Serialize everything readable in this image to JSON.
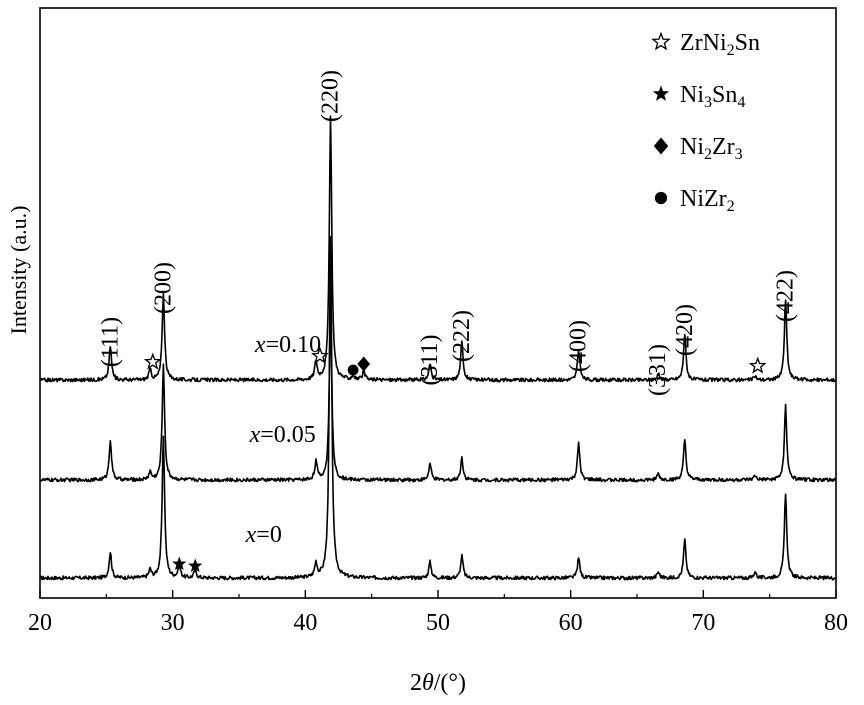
{
  "chart_data": {
    "type": "line",
    "title": "",
    "xlabel": "2θ/(°)",
    "xlabel_parts": {
      "prefix": "2",
      "theta": "θ",
      "suffix": "/(°)"
    },
    "ylabel": "Intensity (a.u.)",
    "xlim": [
      20,
      80
    ],
    "x_ticks": [
      20,
      30,
      40,
      50,
      60,
      70,
      80
    ],
    "y_ticks_shown": false,
    "grid": false,
    "legend_placement": "top-right",
    "legend": [
      {
        "marker": "star-open",
        "parts": [
          {
            "t": "ZrNi",
            "sub": false
          },
          {
            "t": "2",
            "sub": true
          },
          {
            "t": "Sn",
            "sub": false
          }
        ]
      },
      {
        "marker": "star-filled",
        "parts": [
          {
            "t": "Ni",
            "sub": false
          },
          {
            "t": "3",
            "sub": true
          },
          {
            "t": "Sn",
            "sub": false
          },
          {
            "t": "4",
            "sub": true
          }
        ]
      },
      {
        "marker": "diamond-filled",
        "parts": [
          {
            "t": "Ni",
            "sub": false
          },
          {
            "t": "2",
            "sub": true
          },
          {
            "t": "Zr",
            "sub": false
          },
          {
            "t": "3",
            "sub": true
          }
        ]
      },
      {
        "marker": "circle-filled",
        "parts": [
          {
            "t": "NiZr",
            "sub": false
          },
          {
            "t": "2",
            "sub": true
          }
        ]
      }
    ],
    "series": [
      {
        "name": "x=0",
        "label_var": "x",
        "label_val": "=0",
        "label_pos": {
          "x": 35.5,
          "y": 0.2
        },
        "baseline": 0.02,
        "peaks": [
          [
            25.3,
            0.13
          ],
          [
            28.3,
            0.04
          ],
          [
            29.3,
            0.71
          ],
          [
            30.5,
            0.06
          ],
          [
            31.7,
            0.04
          ],
          [
            40.8,
            0.07
          ],
          [
            41.9,
            1.7
          ],
          [
            49.4,
            0.08
          ],
          [
            51.8,
            0.11
          ],
          [
            60.6,
            0.1
          ],
          [
            66.6,
            0.03
          ],
          [
            68.6,
            0.19
          ],
          [
            73.9,
            0.03
          ],
          [
            76.2,
            0.42
          ]
        ]
      },
      {
        "name": "x=0.05",
        "label_var": "x",
        "label_val": "=0.05",
        "label_pos": {
          "x": 35.8,
          "y": 0.7
        },
        "baseline": 0.51,
        "peaks": [
          [
            25.3,
            0.2
          ],
          [
            28.3,
            0.04
          ],
          [
            29.3,
            0.57
          ],
          [
            40.8,
            0.09
          ],
          [
            41.9,
            0.86
          ],
          [
            49.4,
            0.08
          ],
          [
            51.8,
            0.11
          ],
          [
            60.6,
            0.18
          ],
          [
            66.6,
            0.03
          ],
          [
            68.6,
            0.2
          ],
          [
            73.9,
            0.02
          ],
          [
            76.2,
            0.37
          ]
        ]
      },
      {
        "name": "x=0.10",
        "label_var": "x",
        "label_val": "=0.10",
        "label_pos": {
          "x": 36.2,
          "y": 1.15
        },
        "baseline": 1.01,
        "peaks": [
          [
            25.3,
            0.17
          ],
          [
            28.3,
            0.05
          ],
          [
            29.3,
            0.43
          ],
          [
            40.8,
            0.09
          ],
          [
            41.9,
            1.31
          ],
          [
            43.6,
            0.02
          ],
          [
            44.4,
            0.04
          ],
          [
            49.4,
            0.08
          ],
          [
            51.8,
            0.19
          ],
          [
            60.6,
            0.15
          ],
          [
            66.6,
            0.03
          ],
          [
            68.6,
            0.23
          ],
          [
            73.9,
            0.02
          ],
          [
            76.2,
            0.4
          ]
        ]
      }
    ],
    "annotations": [
      {
        "text": "(111)",
        "x": 25.3,
        "y": 1.2
      },
      {
        "text": "(200)",
        "x": 29.3,
        "y": 1.47
      },
      {
        "text": "(220)",
        "x": 41.9,
        "y": 2.43
      },
      {
        "text": "(311)",
        "x": 49.4,
        "y": 1.11
      },
      {
        "text": "(222)",
        "x": 51.8,
        "y": 1.23
      },
      {
        "text": "(400)",
        "x": 60.6,
        "y": 1.18
      },
      {
        "text": "(331)",
        "x": 66.6,
        "y": 1.06
      },
      {
        "text": "(420)",
        "x": 68.6,
        "y": 1.26
      },
      {
        "text": "(422)",
        "x": 76.2,
        "y": 1.43
      }
    ],
    "phase_markers": [
      {
        "marker": "star-open",
        "x": 28.5,
        "y": 1.1
      },
      {
        "marker": "star-open",
        "x": 41.1,
        "y": 1.13
      },
      {
        "marker": "star-open",
        "x": 74.1,
        "y": 1.08
      },
      {
        "marker": "star-filled",
        "x": 30.5,
        "y": 0.09
      },
      {
        "marker": "star-filled",
        "x": 31.7,
        "y": 0.08
      },
      {
        "marker": "diamond-filled",
        "x": 44.4,
        "y": 1.09
      },
      {
        "marker": "circle-filled",
        "x": 43.6,
        "y": 1.06
      }
    ]
  }
}
